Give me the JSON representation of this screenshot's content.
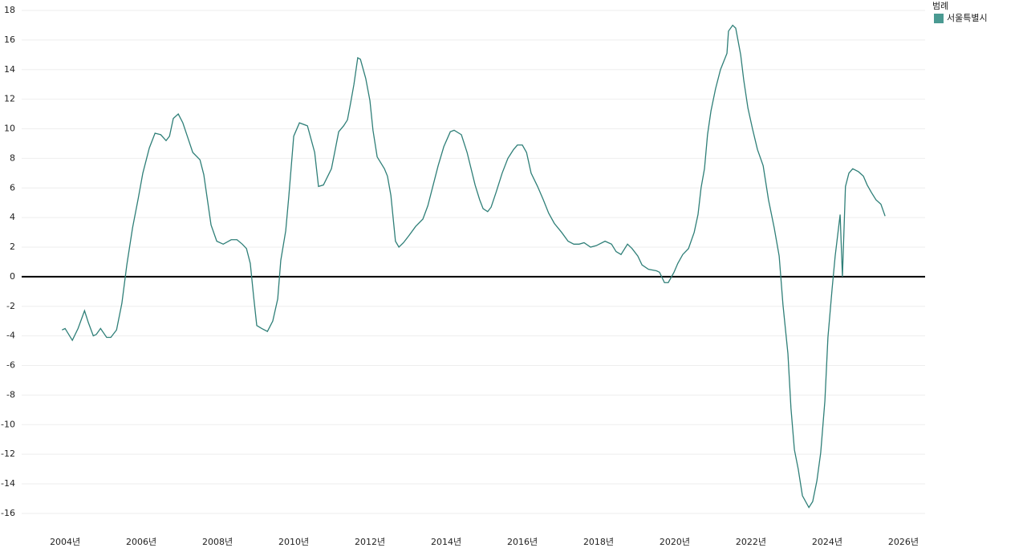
{
  "chart_data": {
    "type": "line",
    "legend_title": "범례",
    "legend": "top-right",
    "grid": true,
    "zero_line": true,
    "x": [
      2003.92,
      2004.0,
      2004.19,
      2004.34,
      2004.51,
      2004.61,
      2004.74,
      2004.82,
      2004.93,
      2005.09,
      2005.2,
      2005.35,
      2005.49,
      2005.62,
      2005.77,
      2005.92,
      2006.04,
      2006.21,
      2006.36,
      2006.51,
      2006.65,
      2006.74,
      2006.84,
      2006.97,
      2007.09,
      2007.22,
      2007.35,
      2007.54,
      2007.64,
      2007.83,
      2007.98,
      2008.15,
      2008.36,
      2008.51,
      2008.65,
      2008.76,
      2008.86,
      2008.95,
      2009.03,
      2009.16,
      2009.31,
      2009.45,
      2009.58,
      2009.66,
      2009.79,
      2009.87,
      2009.94,
      2010.0,
      2010.15,
      2010.36,
      2010.55,
      2010.65,
      2010.78,
      2010.99,
      2011.09,
      2011.18,
      2011.31,
      2011.41,
      2011.49,
      2011.58,
      2011.68,
      2011.75,
      2011.89,
      2012.0,
      2012.08,
      2012.19,
      2012.38,
      2012.46,
      2012.55,
      2012.67,
      2012.76,
      2012.88,
      2013.03,
      2013.2,
      2013.39,
      2013.52,
      2013.66,
      2013.79,
      2013.94,
      2014.11,
      2014.21,
      2014.4,
      2014.55,
      2014.76,
      2014.88,
      2014.97,
      2015.09,
      2015.18,
      2015.31,
      2015.47,
      2015.62,
      2015.77,
      2015.87,
      2016.0,
      2016.11,
      2016.23,
      2016.4,
      2016.55,
      2016.69,
      2016.84,
      2017.03,
      2017.2,
      2017.35,
      2017.49,
      2017.62,
      2017.79,
      2017.94,
      2018.17,
      2018.34,
      2018.46,
      2018.59,
      2018.76,
      2018.88,
      2019.03,
      2019.14,
      2019.31,
      2019.52,
      2019.6,
      2019.73,
      2019.83,
      2019.98,
      2020.08,
      2020.21,
      2020.36,
      2020.51,
      2020.61,
      2020.69,
      2020.78,
      2020.86,
      2020.95,
      2021.07,
      2021.2,
      2021.37,
      2021.41,
      2021.52,
      2021.6,
      2021.73,
      2021.81,
      2021.92,
      2022.04,
      2022.17,
      2022.32,
      2022.46,
      2022.61,
      2022.74,
      2022.84,
      2022.97,
      2023.05,
      2023.14,
      2023.24,
      2023.35,
      2023.52,
      2023.62,
      2023.73,
      2023.83,
      2023.94,
      2024.02,
      2024.13,
      2024.21,
      2024.34,
      2024.4,
      2024.48,
      2024.57,
      2024.67,
      2024.82,
      2024.95,
      2025.05,
      2025.16,
      2025.28,
      2025.41,
      2025.52
    ],
    "series": [
      {
        "name": "서울특별시",
        "color": "#2f7f78",
        "legend_color": "#4a9a92",
        "values": [
          -3.6,
          -3.5,
          -4.3,
          -3.5,
          -2.3,
          -3.1,
          -4.0,
          -3.9,
          -3.5,
          -4.1,
          -4.1,
          -3.6,
          -1.8,
          0.8,
          3.3,
          5.3,
          7.0,
          8.7,
          9.7,
          9.6,
          9.2,
          9.5,
          10.7,
          11.0,
          10.4,
          9.4,
          8.4,
          7.9,
          6.9,
          3.5,
          2.4,
          2.2,
          2.5,
          2.5,
          2.2,
          1.9,
          0.9,
          -1.4,
          -3.3,
          -3.5,
          -3.7,
          -3.0,
          -1.5,
          1.1,
          3.1,
          5.4,
          7.6,
          9.5,
          10.4,
          10.2,
          8.4,
          6.1,
          6.2,
          7.3,
          8.6,
          9.8,
          10.2,
          10.6,
          11.7,
          13.0,
          14.8,
          14.7,
          13.4,
          11.9,
          9.9,
          8.1,
          7.3,
          6.8,
          5.5,
          2.4,
          2.0,
          2.3,
          2.8,
          3.4,
          3.9,
          4.8,
          6.2,
          7.5,
          8.8,
          9.8,
          9.9,
          9.6,
          8.4,
          6.2,
          5.2,
          4.6,
          4.4,
          4.7,
          5.7,
          7.0,
          8.0,
          8.6,
          8.9,
          8.9,
          8.4,
          7.0,
          6.1,
          5.2,
          4.3,
          3.6,
          3.0,
          2.4,
          2.2,
          2.2,
          2.3,
          2.0,
          2.1,
          2.4,
          2.2,
          1.7,
          1.5,
          2.2,
          1.9,
          1.4,
          0.8,
          0.5,
          0.4,
          0.3,
          -0.4,
          -0.4,
          0.3,
          0.9,
          1.5,
          1.9,
          3.0,
          4.2,
          6.0,
          7.3,
          9.6,
          11.2,
          12.7,
          14.0,
          15.1,
          16.6,
          17.0,
          16.8,
          15.0,
          13.3,
          11.4,
          10.0,
          8.6,
          7.5,
          5.2,
          3.3,
          1.4,
          -1.9,
          -5.2,
          -8.9,
          -11.7,
          -13.0,
          -14.8,
          -15.6,
          -15.2,
          -13.8,
          -11.9,
          -8.4,
          -4.1,
          -0.8,
          1.4,
          4.2,
          0.0,
          6.1,
          7.0,
          7.3,
          7.1,
          6.8,
          6.2,
          5.7,
          5.2,
          4.9,
          4.1
        ]
      }
    ],
    "xlim": [
      2002.86,
      2026.57
    ],
    "xticks": [
      {
        "value": 2004,
        "label": "2004년"
      },
      {
        "value": 2006,
        "label": "2006년"
      },
      {
        "value": 2008,
        "label": "2008년"
      },
      {
        "value": 2010,
        "label": "2010년"
      },
      {
        "value": 2012,
        "label": "2012년"
      },
      {
        "value": 2014,
        "label": "2014년"
      },
      {
        "value": 2016,
        "label": "2016년"
      },
      {
        "value": 2018,
        "label": "2018년"
      },
      {
        "value": 2020,
        "label": "2020년"
      },
      {
        "value": 2022,
        "label": "2022년"
      },
      {
        "value": 2024,
        "label": "2024년"
      },
      {
        "value": 2026,
        "label": "2026년"
      }
    ],
    "ylim": [
      -17.2,
      18
    ],
    "yticks": [
      -16,
      -14,
      -12,
      -10,
      -8,
      -6,
      -4,
      -2,
      0,
      2,
      4,
      6,
      8,
      10,
      12,
      14,
      16,
      18
    ]
  }
}
